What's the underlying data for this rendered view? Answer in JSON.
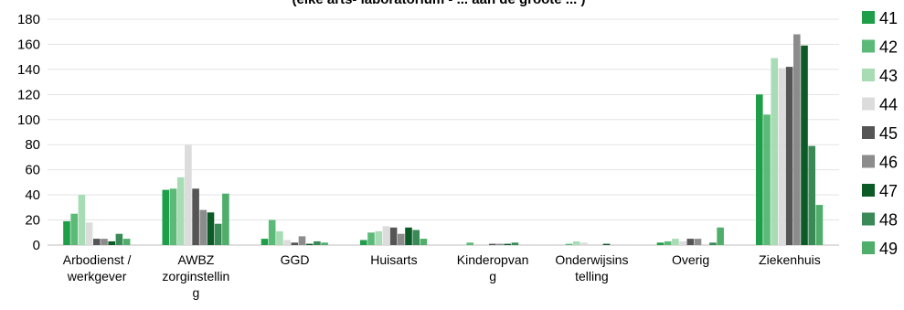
{
  "chart_data": {
    "type": "bar",
    "title": "(elke arts- laboratorium - ... aan de groote ... )",
    "categories": [
      [
        "Arbodienst /",
        "werkgever"
      ],
      [
        "AWBZ",
        "zorginstellin",
        "g"
      ],
      [
        "GGD"
      ],
      [
        "Huisarts"
      ],
      [
        "Kinderopvan",
        "g"
      ],
      [
        "Onderwijsins",
        "telling"
      ],
      [
        "Overig"
      ],
      [
        "Ziekenhuis"
      ]
    ],
    "ylim": [
      0,
      180
    ],
    "yticks": [
      0,
      20,
      40,
      60,
      80,
      100,
      120,
      140,
      160,
      180
    ],
    "grid": true,
    "legend_position": "right",
    "series": [
      {
        "name": "41",
        "color": "#1e9e48",
        "values": [
          19,
          44,
          5,
          4,
          0,
          0,
          2,
          120
        ]
      },
      {
        "name": "42",
        "color": "#5cba78",
        "values": [
          25,
          45,
          20,
          10,
          2,
          1,
          3,
          104
        ]
      },
      {
        "name": "43",
        "color": "#a8dcb4",
        "values": [
          40,
          54,
          11,
          11,
          0,
          3,
          5,
          149
        ]
      },
      {
        "name": "44",
        "color": "#dcdcdc",
        "values": [
          18,
          80,
          4,
          15,
          0,
          2,
          3,
          141
        ]
      },
      {
        "name": "45",
        "color": "#555555",
        "values": [
          5,
          45,
          2,
          14,
          1,
          0,
          5,
          142
        ]
      },
      {
        "name": "46",
        "color": "#8c8c8c",
        "values": [
          5,
          28,
          7,
          9,
          1,
          0,
          5,
          168
        ]
      },
      {
        "name": "47",
        "color": "#0c5a26",
        "values": [
          3,
          26,
          1,
          14,
          1,
          1,
          0,
          159
        ]
      },
      {
        "name": "48",
        "color": "#3a8a57",
        "values": [
          9,
          17,
          3,
          12,
          2,
          0,
          2,
          79
        ]
      },
      {
        "name": "49",
        "color": "#4fae6a",
        "values": [
          5,
          41,
          2,
          5,
          0,
          0,
          14,
          32
        ]
      }
    ]
  }
}
